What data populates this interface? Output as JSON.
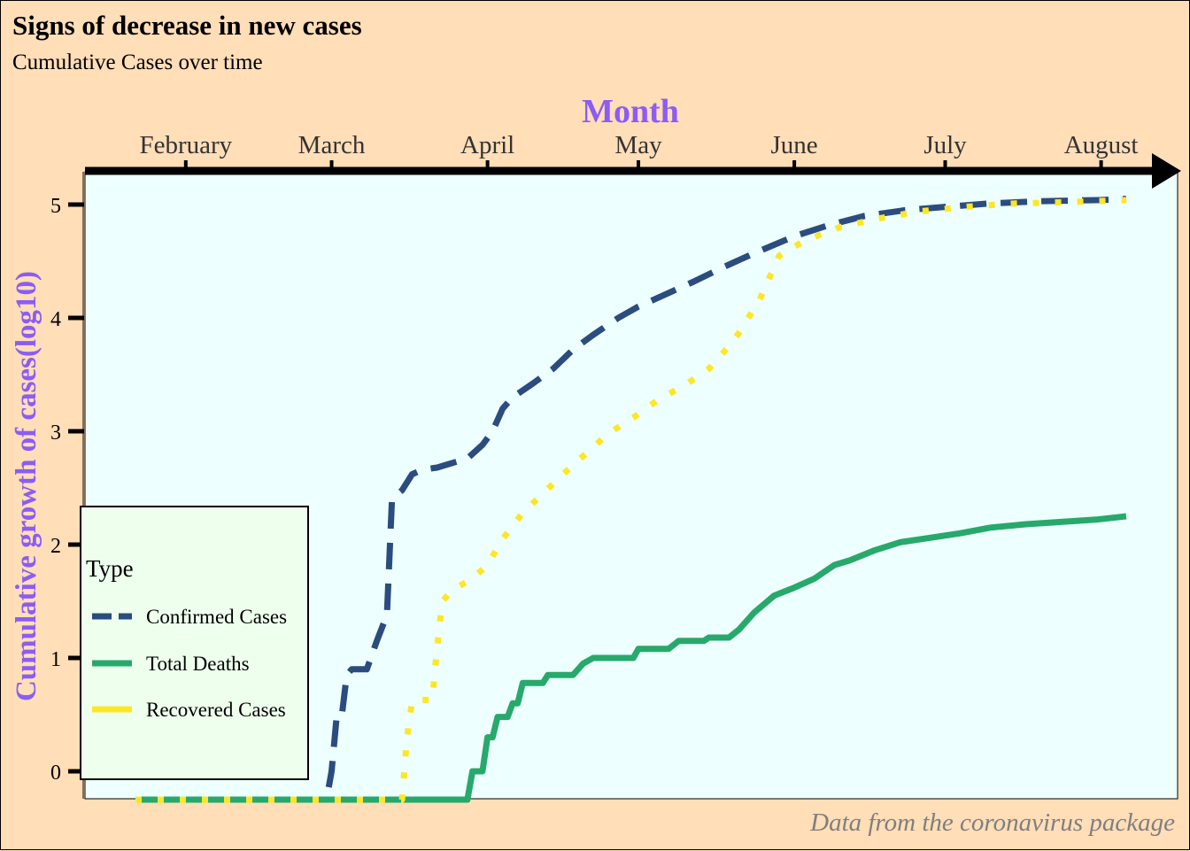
{
  "title": "Signs of decrease in new cases",
  "subtitle": "Cumulative Cases over time",
  "caption": "Data from the coronavirus package",
  "chart_data": {
    "type": "line",
    "xlabel": "Month",
    "ylabel": "Cumulative growth of cases(log10)",
    "x_position": "top",
    "x_ticks": [
      "February",
      "March",
      "April",
      "May",
      "June",
      "July",
      "August"
    ],
    "y_ticks": [
      0,
      1,
      2,
      3,
      4,
      5
    ],
    "xlim": [
      "2020-01-22",
      "2020-08-06"
    ],
    "ylim": [
      -0.25,
      5.3
    ],
    "legend": {
      "title": "Type",
      "position": "bottom-left"
    },
    "colors": {
      "Confirmed Cases": "#2B4C7E",
      "Total Deaths": "#27A96C",
      "Recovered Cases": "#FDE725",
      "axis_title": "#8B5CF6",
      "panel": "#EEFFFF",
      "background": "#FFDEB8"
    },
    "series": [
      {
        "name": "Confirmed Cases",
        "style": "dashed",
        "points": [
          [
            "2020-01-22",
            -0.25
          ],
          [
            "2020-02-29",
            -0.25
          ],
          [
            "2020-03-01",
            0.0
          ],
          [
            "2020-03-02",
            0.48
          ],
          [
            "2020-03-03",
            0.48
          ],
          [
            "2020-03-04",
            0.85
          ],
          [
            "2020-03-05",
            0.9
          ],
          [
            "2020-03-08",
            0.9
          ],
          [
            "2020-03-10",
            1.15
          ],
          [
            "2020-03-12",
            1.38
          ],
          [
            "2020-03-13",
            2.4
          ],
          [
            "2020-03-15",
            2.48
          ],
          [
            "2020-03-17",
            2.62
          ],
          [
            "2020-03-19",
            2.66
          ],
          [
            "2020-03-22",
            2.68
          ],
          [
            "2020-03-25",
            2.72
          ],
          [
            "2020-03-28",
            2.76
          ],
          [
            "2020-03-31",
            2.88
          ],
          [
            "2020-04-02",
            3.0
          ],
          [
            "2020-04-04",
            3.2
          ],
          [
            "2020-04-06",
            3.3
          ],
          [
            "2020-04-10",
            3.42
          ],
          [
            "2020-04-14",
            3.55
          ],
          [
            "2020-04-18",
            3.72
          ],
          [
            "2020-04-22",
            3.85
          ],
          [
            "2020-04-27",
            4.0
          ],
          [
            "2020-05-01",
            4.1
          ],
          [
            "2020-05-06",
            4.2
          ],
          [
            "2020-05-12",
            4.32
          ],
          [
            "2020-05-18",
            4.45
          ],
          [
            "2020-05-24",
            4.57
          ],
          [
            "2020-06-01",
            4.72
          ],
          [
            "2020-06-08",
            4.82
          ],
          [
            "2020-06-15",
            4.9
          ],
          [
            "2020-06-23",
            4.95
          ],
          [
            "2020-07-01",
            4.98
          ],
          [
            "2020-07-10",
            5.01
          ],
          [
            "2020-07-20",
            5.03
          ],
          [
            "2020-08-01",
            5.04
          ],
          [
            "2020-08-06",
            5.05
          ]
        ]
      },
      {
        "name": "Total Deaths",
        "style": "solid",
        "points": [
          [
            "2020-01-22",
            -0.25
          ],
          [
            "2020-03-28",
            -0.25
          ],
          [
            "2020-03-29",
            0.0
          ],
          [
            "2020-03-31",
            0.0
          ],
          [
            "2020-04-01",
            0.3
          ],
          [
            "2020-04-02",
            0.3
          ],
          [
            "2020-04-03",
            0.48
          ],
          [
            "2020-04-05",
            0.48
          ],
          [
            "2020-04-06",
            0.6
          ],
          [
            "2020-04-07",
            0.6
          ],
          [
            "2020-04-08",
            0.78
          ],
          [
            "2020-04-12",
            0.78
          ],
          [
            "2020-04-13",
            0.85
          ],
          [
            "2020-04-18",
            0.85
          ],
          [
            "2020-04-19",
            0.9
          ],
          [
            "2020-04-20",
            0.95
          ],
          [
            "2020-04-22",
            1.0
          ],
          [
            "2020-04-30",
            1.0
          ],
          [
            "2020-05-01",
            1.08
          ],
          [
            "2020-05-07",
            1.08
          ],
          [
            "2020-05-09",
            1.15
          ],
          [
            "2020-05-14",
            1.15
          ],
          [
            "2020-05-15",
            1.18
          ],
          [
            "2020-05-19",
            1.18
          ],
          [
            "2020-05-21",
            1.25
          ],
          [
            "2020-05-24",
            1.4
          ],
          [
            "2020-05-28",
            1.55
          ],
          [
            "2020-06-01",
            1.62
          ],
          [
            "2020-06-05",
            1.7
          ],
          [
            "2020-06-09",
            1.82
          ],
          [
            "2020-06-12",
            1.86
          ],
          [
            "2020-06-17",
            1.95
          ],
          [
            "2020-06-22",
            2.02
          ],
          [
            "2020-06-28",
            2.06
          ],
          [
            "2020-07-04",
            2.1
          ],
          [
            "2020-07-10",
            2.15
          ],
          [
            "2020-07-17",
            2.18
          ],
          [
            "2020-07-24",
            2.2
          ],
          [
            "2020-07-31",
            2.22
          ],
          [
            "2020-08-06",
            2.25
          ]
        ]
      },
      {
        "name": "Recovered Cases",
        "style": "dotted",
        "points": [
          [
            "2020-01-22",
            -0.25
          ],
          [
            "2020-03-15",
            -0.25
          ],
          [
            "2020-03-16",
            0.3
          ],
          [
            "2020-03-17",
            0.62
          ],
          [
            "2020-03-18",
            0.63
          ],
          [
            "2020-03-21",
            0.63
          ],
          [
            "2020-03-22",
            1.1
          ],
          [
            "2020-03-23",
            1.5
          ],
          [
            "2020-03-25",
            1.6
          ],
          [
            "2020-03-29",
            1.7
          ],
          [
            "2020-04-01",
            1.82
          ],
          [
            "2020-04-04",
            2.05
          ],
          [
            "2020-04-08",
            2.28
          ],
          [
            "2020-04-12",
            2.45
          ],
          [
            "2020-04-16",
            2.62
          ],
          [
            "2020-04-20",
            2.78
          ],
          [
            "2020-04-25",
            2.98
          ],
          [
            "2020-04-30",
            3.12
          ],
          [
            "2020-05-05",
            3.28
          ],
          [
            "2020-05-10",
            3.4
          ],
          [
            "2020-05-15",
            3.55
          ],
          [
            "2020-05-20",
            3.8
          ],
          [
            "2020-05-25",
            4.15
          ],
          [
            "2020-05-29",
            4.55
          ],
          [
            "2020-06-03",
            4.68
          ],
          [
            "2020-06-10",
            4.8
          ],
          [
            "2020-06-18",
            4.88
          ],
          [
            "2020-06-26",
            4.94
          ],
          [
            "2020-07-05",
            4.98
          ],
          [
            "2020-07-15",
            5.01
          ],
          [
            "2020-07-25",
            5.02
          ],
          [
            "2020-08-06",
            5.04
          ]
        ]
      }
    ]
  }
}
